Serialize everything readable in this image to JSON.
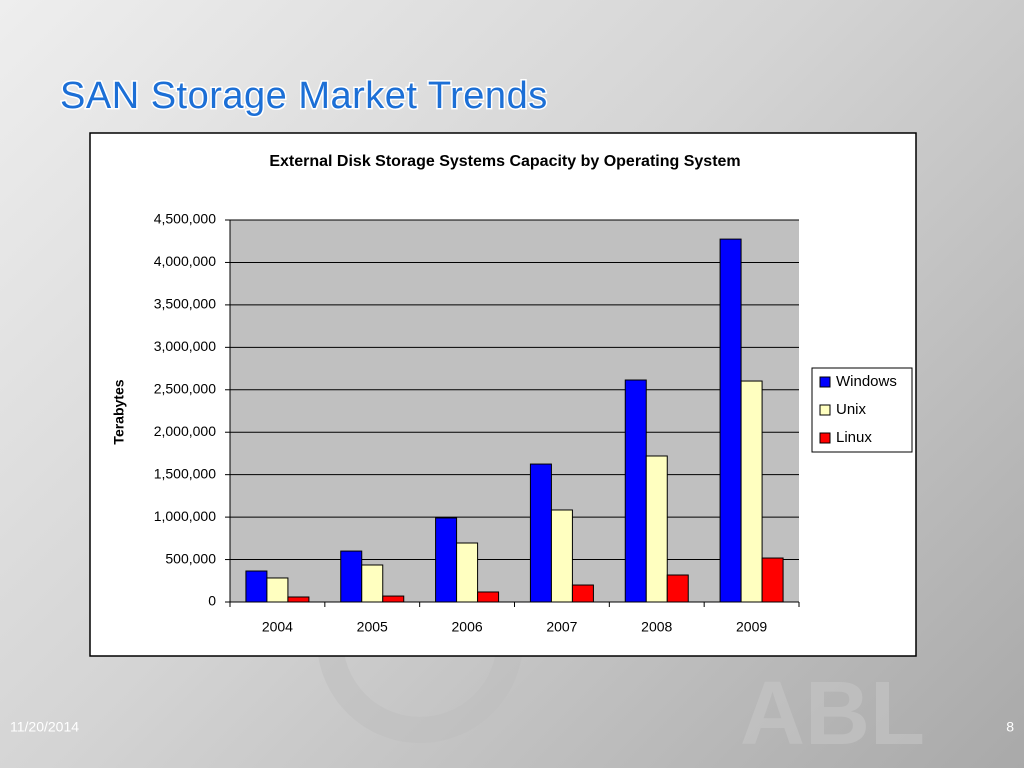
{
  "slide": {
    "title": "SAN Storage Market Trends",
    "date": "11/20/2014",
    "page_number": 8
  },
  "chart_data": {
    "type": "bar",
    "title": "External Disk Storage Systems Capacity by Operating System",
    "y_label": "Terabytes",
    "categories": [
      "2004",
      "2005",
      "2006",
      "2007",
      "2008",
      "2009"
    ],
    "series": [
      {
        "name": "Windows",
        "color": "#0000ff",
        "values": [
          365000,
          600000,
          990000,
          1625000,
          2615000,
          4275000
        ]
      },
      {
        "name": "Unix",
        "color": "#ffffc0",
        "values": [
          283000,
          436000,
          695000,
          1084000,
          1720000,
          2603000
        ]
      },
      {
        "name": "Linux",
        "color": "#ff0000",
        "values": [
          59000,
          70000,
          118000,
          200000,
          318000,
          518000
        ]
      }
    ],
    "ylim": [
      0,
      4500000
    ],
    "yticks": [
      0,
      {
        "value": 500000,
        "label": "500,000"
      },
      {
        "value": 1000000,
        "label": "1,000,000"
      },
      {
        "value": 1500000,
        "label": "1,500,000"
      },
      {
        "value": 2000000,
        "label": "2,000,000"
      },
      {
        "value": 2500000,
        "label": "2,500,000"
      },
      {
        "value": 3000000,
        "label": "3,000,000"
      },
      {
        "value": 3500000,
        "label": "3,500,000"
      },
      {
        "value": 4000000,
        "label": "4,000,000"
      },
      {
        "value": 4500000,
        "label": "4,500,000"
      }
    ],
    "grid": true,
    "legend": "right"
  }
}
